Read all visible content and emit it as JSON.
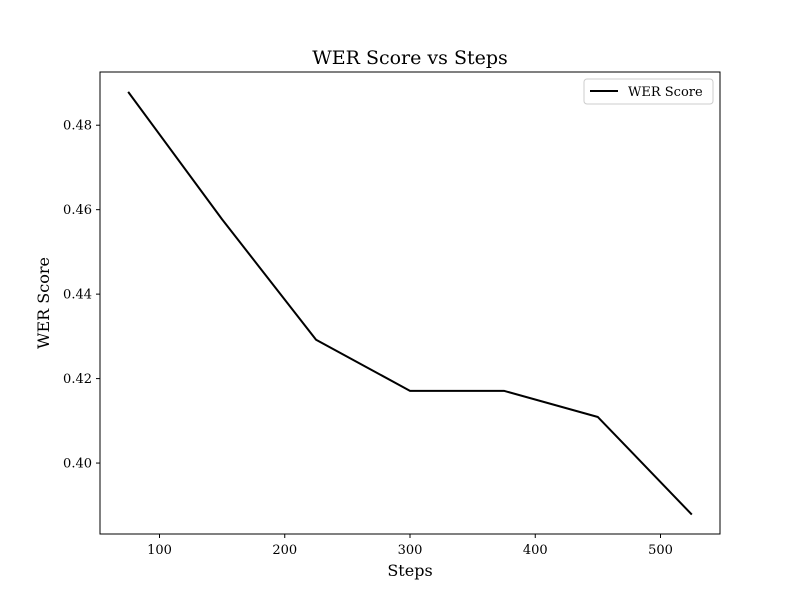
{
  "chart_data": {
    "type": "line",
    "title": "WER Score vs Steps",
    "xlabel": "Steps",
    "ylabel": "WER Score",
    "xlim": [
      52.5,
      547.5
    ],
    "ylim": [
      0.3832,
      0.4926
    ],
    "xticks": [
      100,
      200,
      300,
      400,
      500
    ],
    "xtick_labels": [
      "100",
      "200",
      "300",
      "400",
      "500"
    ],
    "yticks": [
      0.4,
      0.42,
      0.44,
      0.46,
      0.48
    ],
    "ytick_labels": [
      "0.40",
      "0.42",
      "0.44",
      "0.46",
      "0.48"
    ],
    "grid": false,
    "legend_position": "top-right",
    "series": [
      {
        "name": "WER Score",
        "color": "#000000",
        "x": [
          75,
          150,
          225,
          300,
          375,
          450,
          525
        ],
        "y": [
          0.4879,
          0.4577,
          0.4292,
          0.4171,
          0.4171,
          0.4109,
          0.3878
        ]
      }
    ]
  }
}
